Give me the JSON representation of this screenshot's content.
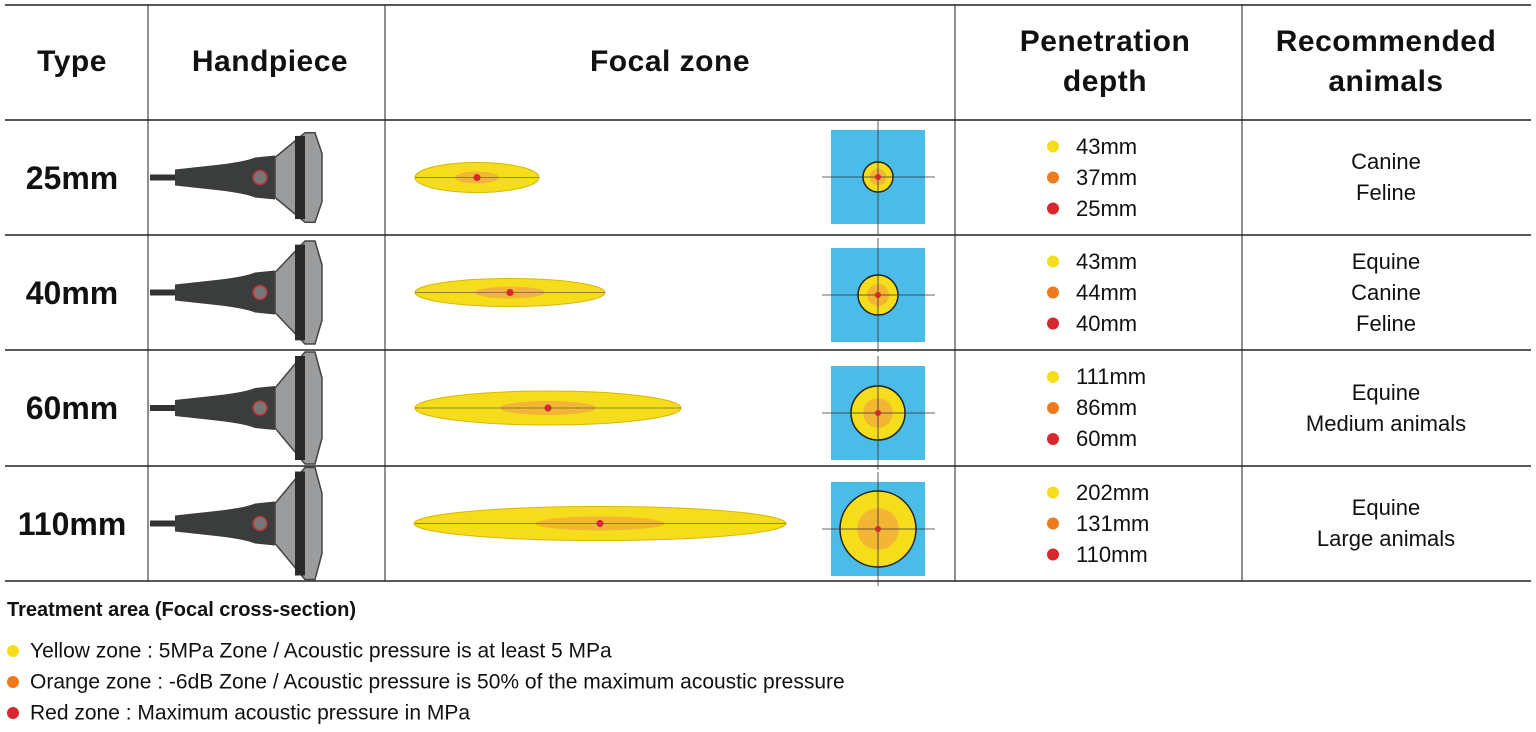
{
  "table": {
    "header": [
      "Type",
      "Handpiece",
      "Focal zone",
      "Penetration depth",
      "Recommended animals"
    ],
    "rows": [
      {
        "type": "25mm",
        "depths": [
          "43mm",
          "37mm",
          "25mm"
        ],
        "animals": [
          "Canine",
          "Feline"
        ]
      },
      {
        "type": "40mm",
        "depths": [
          "43mm",
          "44mm",
          "40mm"
        ],
        "animals": [
          "Equine",
          "Canine",
          "Feline"
        ]
      },
      {
        "type": "60mm",
        "depths": [
          "111mm",
          "86mm",
          "60mm"
        ],
        "animals": [
          "Equine",
          "Medium animals"
        ]
      },
      {
        "type": "110mm",
        "depths": [
          "202mm",
          "131mm",
          "110mm"
        ],
        "animals": [
          "Equine",
          "Large animals"
        ]
      }
    ]
  },
  "legend": {
    "title": "Treatment area (Focal cross-section)",
    "items": [
      "Yellow zone : 5MPa Zone / Acoustic pressure is at least 5 MPa",
      "Orange zone : -6dB Zone / Acoustic pressure is 50% of the maximum acoustic pressure",
      "Red zone : Maximum acoustic pressure in MPa"
    ]
  }
}
